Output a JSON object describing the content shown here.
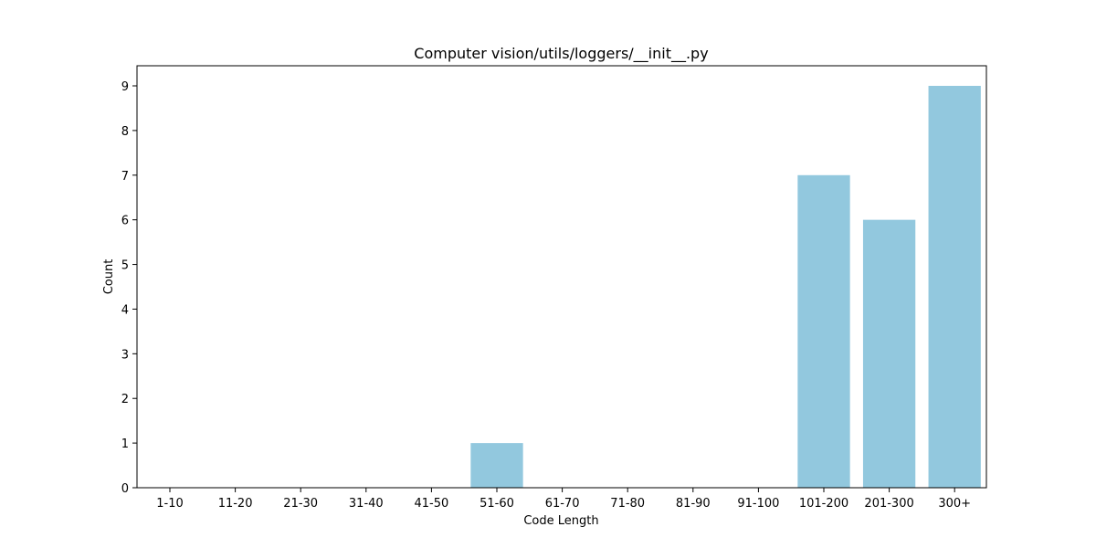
{
  "chart_data": {
    "type": "bar",
    "title": "Computer vision/utils/loggers/__init__.py",
    "xlabel": "Code Length",
    "ylabel": "Count",
    "categories": [
      "1-10",
      "11-20",
      "21-30",
      "31-40",
      "41-50",
      "51-60",
      "61-70",
      "71-80",
      "81-90",
      "91-100",
      "101-200",
      "201-300",
      "300+"
    ],
    "values": [
      0,
      0,
      0,
      0,
      0,
      1,
      0,
      0,
      0,
      0,
      7,
      6,
      9
    ],
    "ylim": [
      0,
      9.45
    ],
    "yticks": [
      "0",
      "1",
      "2",
      "3",
      "4",
      "5",
      "6",
      "7",
      "8",
      "9"
    ],
    "bar_color": "#92c8de",
    "grid": false,
    "legend": "none"
  }
}
